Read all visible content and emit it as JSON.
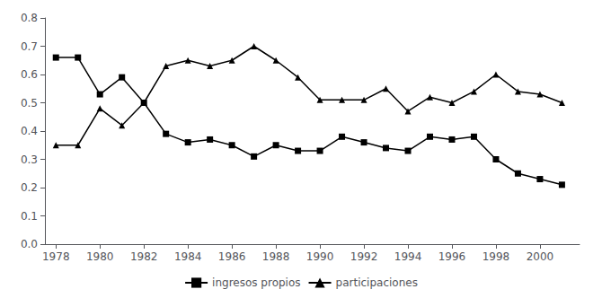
{
  "chart_data": {
    "type": "line",
    "x": [
      1978,
      1979,
      1980,
      1981,
      1982,
      1983,
      1984,
      1985,
      1986,
      1987,
      1988,
      1989,
      1990,
      1991,
      1992,
      1993,
      1994,
      1995,
      1996,
      1997,
      1998,
      1999,
      2000,
      2001
    ],
    "series": [
      {
        "name": "ingresos propios",
        "color": "#000000",
        "marker": "square",
        "values": [
          0.66,
          0.66,
          0.53,
          0.59,
          0.5,
          0.39,
          0.36,
          0.37,
          0.35,
          0.31,
          0.35,
          0.33,
          0.33,
          0.38,
          0.36,
          0.34,
          0.33,
          0.38,
          0.37,
          0.38,
          0.3,
          0.25,
          0.23,
          0.21
        ]
      },
      {
        "name": "participaciones",
        "color": "#000000",
        "marker": "triangle",
        "values": [
          0.35,
          0.35,
          0.48,
          0.42,
          0.5,
          0.63,
          0.65,
          0.63,
          0.65,
          0.7,
          0.65,
          0.59,
          0.51,
          0.51,
          0.51,
          0.55,
          0.47,
          0.52,
          0.5,
          0.54,
          0.6,
          0.54,
          0.53,
          0.5
        ]
      }
    ],
    "xlim": [
      1977.5,
      2001.8
    ],
    "xticks": [
      1978,
      1980,
      1982,
      1984,
      1986,
      1988,
      1990,
      1992,
      1994,
      1996,
      1998,
      2000
    ],
    "ylim": [
      0,
      0.8
    ],
    "yticks": [
      {
        "value": 0,
        "label": "0.0"
      },
      0.1,
      0.2,
      0.3,
      0.4,
      0.5,
      0.6,
      0.7,
      0.8
    ],
    "grid": false,
    "legend": "bottom"
  }
}
